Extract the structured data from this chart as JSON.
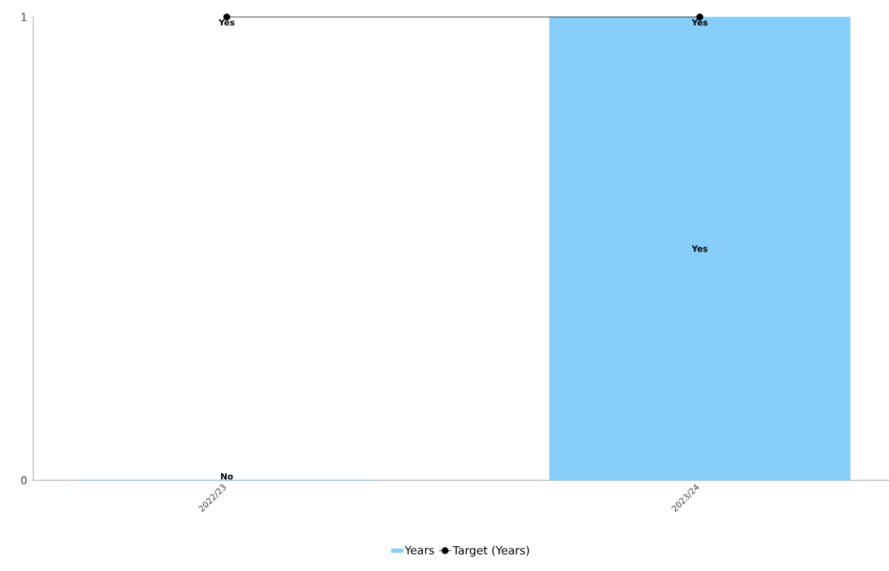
{
  "chart_data": {
    "type": "bar",
    "categories": [
      "2022/23",
      "2023/24"
    ],
    "series": [
      {
        "name": "Years",
        "color": "#87cefa",
        "values": [
          0,
          1
        ],
        "value_labels": [
          "No",
          "Yes"
        ]
      },
      {
        "name": "Target (Years)",
        "type": "line",
        "color": "#000000",
        "values": [
          1,
          1
        ],
        "value_labels": [
          "Yes",
          "Yes"
        ]
      }
    ],
    "ylim": [
      0,
      1
    ],
    "yticks": [
      0,
      1
    ],
    "grid": false,
    "legend": "bottom",
    "marker": "circle",
    "line_style": "solid"
  }
}
